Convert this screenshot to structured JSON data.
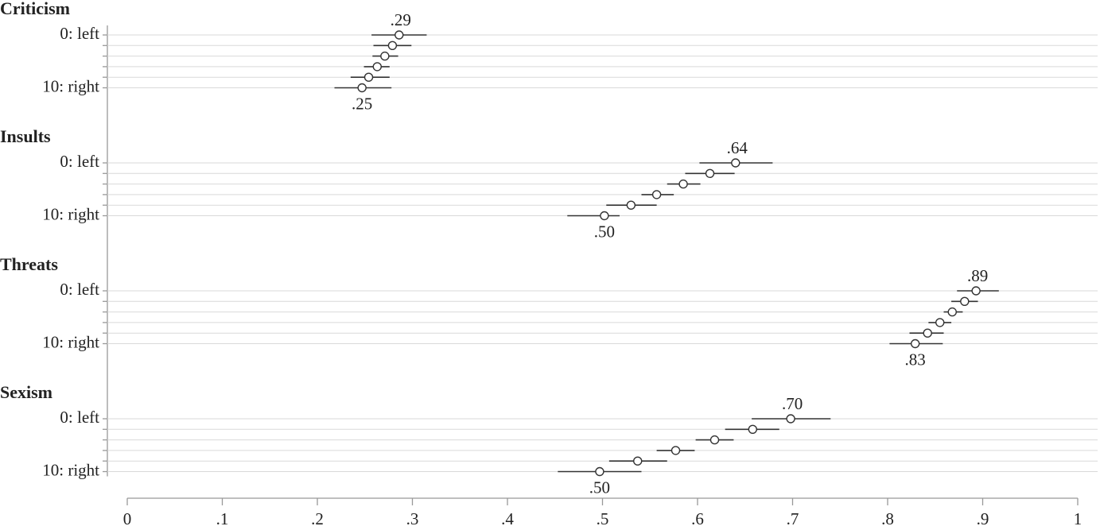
{
  "chart_data": {
    "type": "dot-errorbar",
    "color": "#333333",
    "grid": true,
    "xlim": [
      0,
      1
    ],
    "xticks": [
      0,
      {
        "value": 0.1,
        "label": ".1"
      },
      {
        "value": 0.2,
        "label": ".2"
      },
      {
        "value": 0.3,
        "label": ".3"
      },
      {
        "value": 0.4,
        "label": ".4"
      },
      {
        "value": 0.5,
        "label": ".5"
      },
      {
        "value": 0.6,
        "label": ".6"
      },
      {
        "value": 0.7,
        "label": ".7"
      },
      {
        "value": 0.8,
        "label": ".8"
      },
      {
        "value": 0.9,
        "label": ".9"
      },
      1
    ],
    "series": [
      {
        "name": "Criticism",
        "categories": [
          "0: left",
          null,
          null,
          null,
          null,
          "10: right"
        ],
        "values": [
          0.286,
          0.279,
          0.271,
          0.263,
          0.254,
          0.247
        ],
        "lower": [
          0.257,
          0.259,
          0.258,
          0.249,
          0.235,
          0.218
        ],
        "upper": [
          0.315,
          0.299,
          0.285,
          0.276,
          0.276,
          0.278
        ],
        "value_labels": [
          ".29",
          null,
          null,
          null,
          null,
          ".25"
        ]
      },
      {
        "name": "Insults",
        "categories": [
          "0: left",
          null,
          null,
          null,
          null,
          "10: right"
        ],
        "values": [
          0.64,
          0.613,
          0.585,
          0.557,
          0.53,
          0.502
        ],
        "lower": [
          0.602,
          0.587,
          0.568,
          0.541,
          0.504,
          0.463
        ],
        "upper": [
          0.679,
          0.639,
          0.603,
          0.575,
          0.557,
          0.518
        ],
        "value_labels": [
          ".64",
          null,
          null,
          null,
          null,
          ".50"
        ]
      },
      {
        "name": "Threats",
        "categories": [
          "0: left",
          null,
          null,
          null,
          null,
          "10: right"
        ],
        "values": [
          0.893,
          0.881,
          0.868,
          0.855,
          0.842,
          0.829
        ],
        "lower": [
          0.873,
          0.867,
          0.859,
          0.843,
          0.823,
          0.802
        ],
        "upper": [
          0.917,
          0.895,
          0.879,
          0.867,
          0.859,
          0.858
        ],
        "value_labels": [
          ".89",
          null,
          null,
          null,
          null,
          ".83"
        ]
      },
      {
        "name": "Sexism",
        "categories": [
          "0: left",
          null,
          null,
          null,
          null,
          "10: right"
        ],
        "values": [
          0.698,
          0.658,
          0.618,
          0.577,
          0.537,
          0.497
        ],
        "lower": [
          0.657,
          0.629,
          0.598,
          0.557,
          0.507,
          0.453
        ],
        "upper": [
          0.74,
          0.686,
          0.638,
          0.597,
          0.568,
          0.541
        ],
        "value_labels": [
          ".70",
          null,
          null,
          null,
          null,
          ".50"
        ]
      }
    ]
  }
}
